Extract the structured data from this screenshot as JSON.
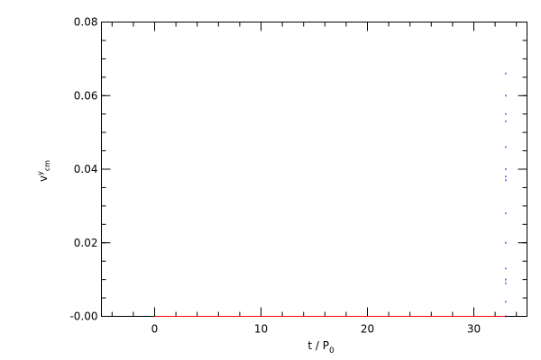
{
  "chart_data": {
    "type": "line",
    "x_label": {
      "base": "t / P",
      "sub": "0"
    },
    "y_label": {
      "base": "v",
      "sup": "y",
      "sub": "cm"
    },
    "xlim": [
      -5,
      35
    ],
    "xticks": [
      0,
      10,
      20,
      30
    ],
    "x_minor_intervals": 5,
    "ylim": [
      0,
      0.08
    ],
    "yticks": [
      {
        "value": 0,
        "label": "-0.00"
      },
      0.02,
      0.04,
      0.06,
      0.08
    ],
    "y_minor_intervals": 4,
    "series": [
      {
        "style": "line",
        "color": "#ff0000",
        "x": [
          0,
          33
        ],
        "values": [
          0,
          0
        ]
      },
      {
        "style": "points",
        "color": "#0000ff",
        "x": [
          33,
          33,
          33,
          33,
          33,
          33,
          33,
          33,
          33,
          33,
          33,
          33,
          33,
          33,
          33
        ],
        "values": [
          0.0,
          0.004,
          0.009,
          0.01,
          0.013,
          0.02,
          0.028,
          0.037,
          0.038,
          0.04,
          0.046,
          0.053,
          0.055,
          0.06,
          0.066
        ]
      }
    ]
  }
}
